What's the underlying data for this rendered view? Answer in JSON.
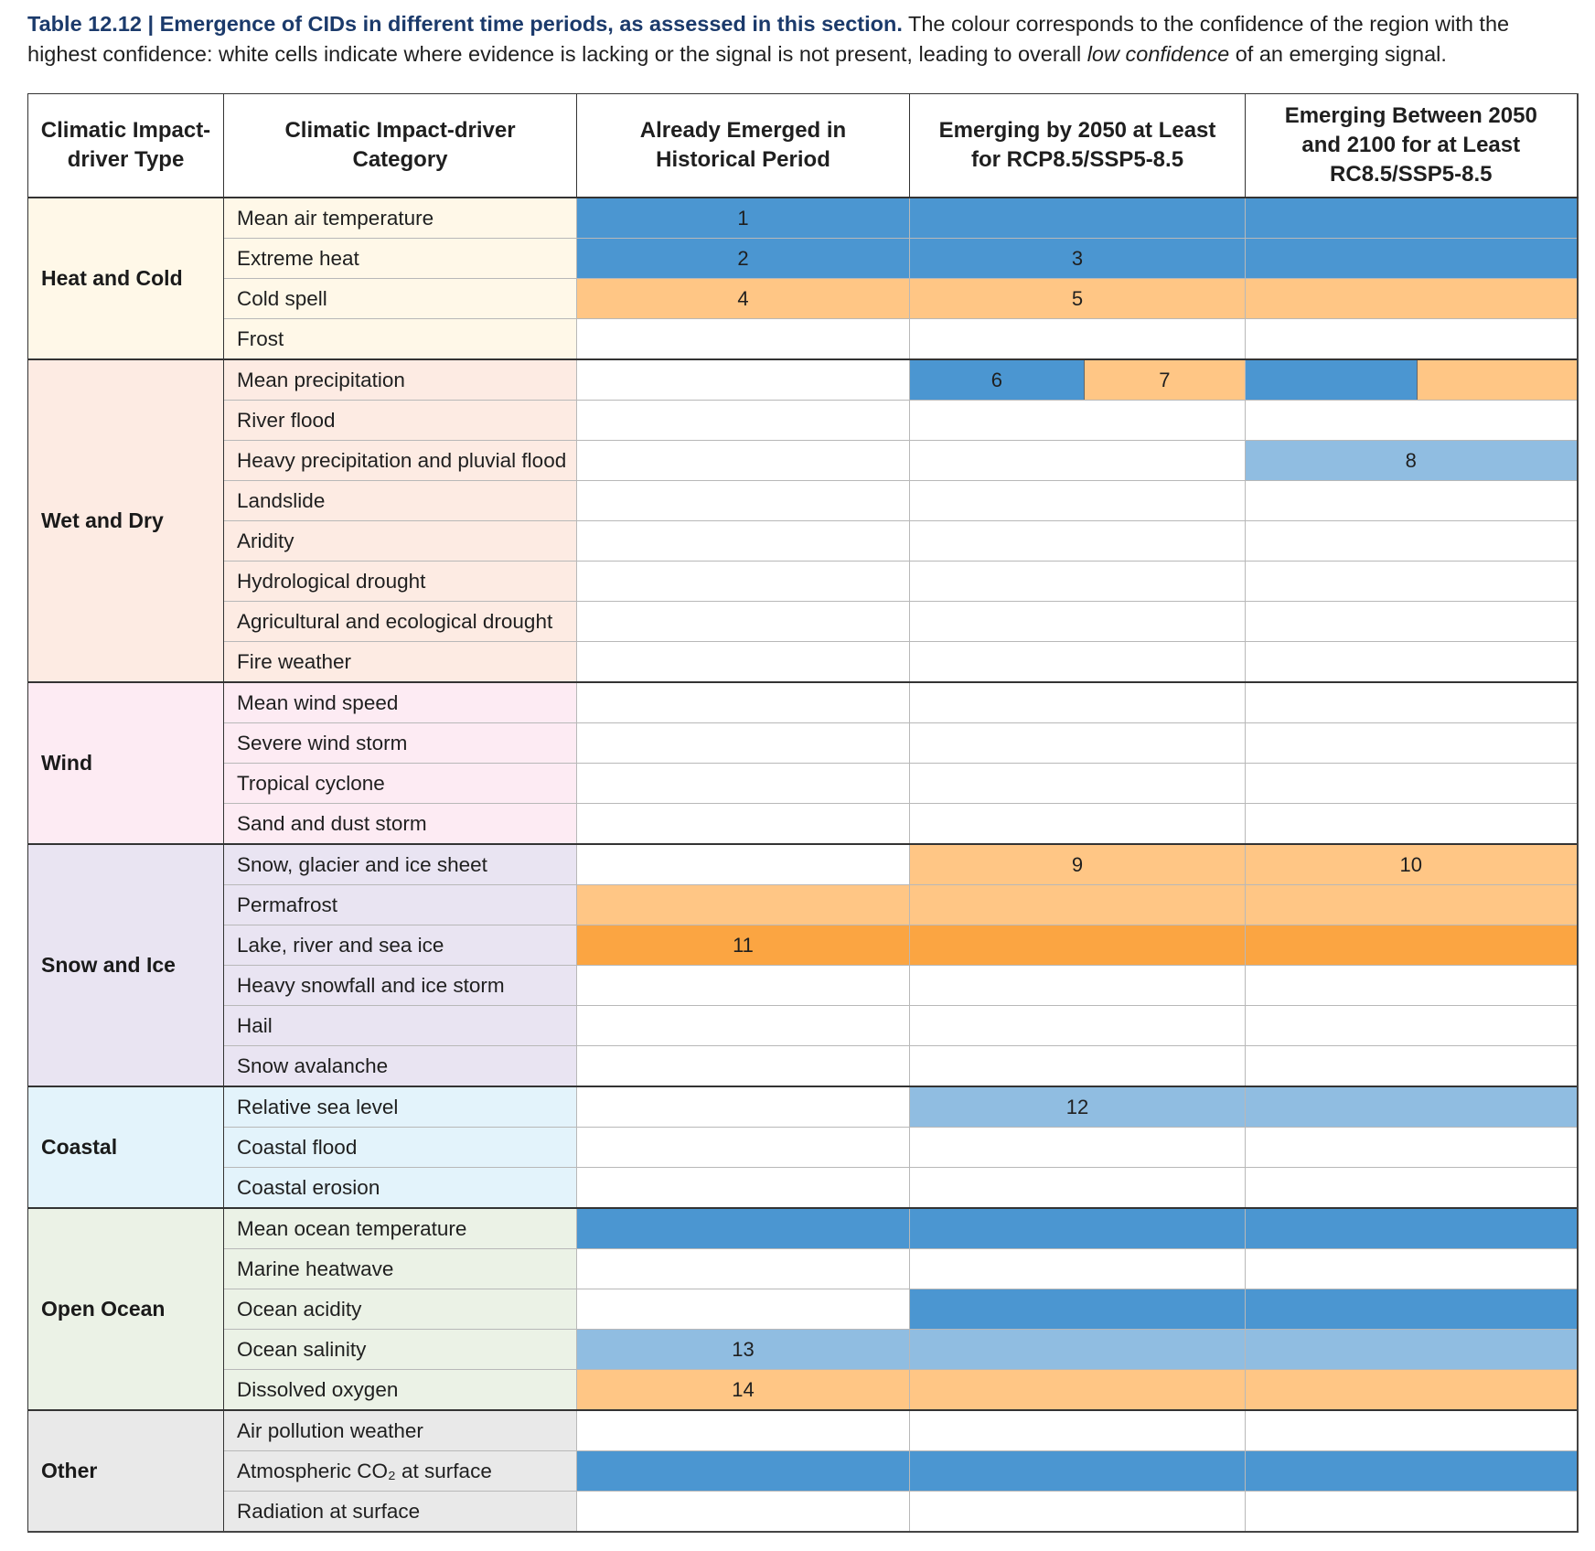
{
  "caption": {
    "title": "Table 12.12 | Emergence of CIDs in different time periods, as assessed in this section.",
    "text_before": " The colour corresponds to the confidence of the region with the highest confidence: white cells indicate where evidence is lacking or the signal is not present, leading to overall ",
    "emphasis": "low confidence",
    "text_after": " of an emerging signal."
  },
  "colors": {
    "blue": "#4b96d1",
    "light_blue": "#90bde1",
    "light_orange": "#ffc685",
    "orange": "#fba542",
    "white": "#ffffff"
  },
  "headers": {
    "type": "Climatic Impact-driver Type",
    "category": "Climatic Impact-driver Category",
    "historical": "Already Emerged in Historical Period",
    "by2050": "Emerging by 2050 at Least for RCP8.5/SSP5-8.5",
    "by2100": "Emerging Between 2050 and 2100 for at Least RC8.5/SSP5-8.5"
  },
  "groups": [
    {
      "type": "Heat and Cold",
      "bg": "#fff8e8",
      "rows": [
        {
          "category": "Mean air temperature",
          "cells": [
            {
              "color": "blue",
              "label": "1"
            },
            {
              "color": "blue",
              "label": ""
            },
            {
              "color": "blue",
              "label": ""
            }
          ]
        },
        {
          "category": "Extreme heat",
          "cells": [
            {
              "color": "blue",
              "label": "2"
            },
            {
              "color": "blue",
              "label": "3"
            },
            {
              "color": "blue",
              "label": ""
            }
          ]
        },
        {
          "category": "Cold spell",
          "cells": [
            {
              "color": "light_orange",
              "label": "4"
            },
            {
              "color": "light_orange",
              "label": "5"
            },
            {
              "color": "light_orange",
              "label": ""
            }
          ]
        },
        {
          "category": "Frost",
          "cells": [
            {
              "color": "white",
              "label": ""
            },
            {
              "color": "white",
              "label": ""
            },
            {
              "color": "white",
              "label": ""
            }
          ]
        }
      ]
    },
    {
      "type": "Wet and Dry",
      "bg": "#fdebe3",
      "rows": [
        {
          "category": "Mean precipitation",
          "cells": [
            {
              "color": "white",
              "label": ""
            },
            {
              "split": [
                {
                  "color": "blue",
                  "label": "6"
                },
                {
                  "color": "light_orange",
                  "label": "7"
                }
              ]
            },
            {
              "split": [
                {
                  "color": "blue",
                  "label": ""
                },
                {
                  "color": "light_orange",
                  "label": ""
                }
              ]
            }
          ]
        },
        {
          "category": "River flood",
          "cells": [
            {
              "color": "white",
              "label": ""
            },
            {
              "color": "white",
              "label": ""
            },
            {
              "color": "white",
              "label": ""
            }
          ]
        },
        {
          "category": "Heavy precipitation and pluvial flood",
          "cells": [
            {
              "color": "white",
              "label": ""
            },
            {
              "color": "white",
              "label": ""
            },
            {
              "color": "light_blue",
              "label": "8"
            }
          ]
        },
        {
          "category": "Landslide",
          "cells": [
            {
              "color": "white",
              "label": ""
            },
            {
              "color": "white",
              "label": ""
            },
            {
              "color": "white",
              "label": ""
            }
          ]
        },
        {
          "category": "Aridity",
          "cells": [
            {
              "color": "white",
              "label": ""
            },
            {
              "color": "white",
              "label": ""
            },
            {
              "color": "white",
              "label": ""
            }
          ]
        },
        {
          "category": "Hydrological drought",
          "cells": [
            {
              "color": "white",
              "label": ""
            },
            {
              "color": "white",
              "label": ""
            },
            {
              "color": "white",
              "label": ""
            }
          ]
        },
        {
          "category": "Agricultural and ecological drought",
          "cells": [
            {
              "color": "white",
              "label": ""
            },
            {
              "color": "white",
              "label": ""
            },
            {
              "color": "white",
              "label": ""
            }
          ]
        },
        {
          "category": "Fire weather",
          "cells": [
            {
              "color": "white",
              "label": ""
            },
            {
              "color": "white",
              "label": ""
            },
            {
              "color": "white",
              "label": ""
            }
          ]
        }
      ]
    },
    {
      "type": "Wind",
      "bg": "#fdebf3",
      "rows": [
        {
          "category": "Mean wind speed",
          "cells": [
            {
              "color": "white",
              "label": ""
            },
            {
              "color": "white",
              "label": ""
            },
            {
              "color": "white",
              "label": ""
            }
          ]
        },
        {
          "category": "Severe wind storm",
          "cells": [
            {
              "color": "white",
              "label": ""
            },
            {
              "color": "white",
              "label": ""
            },
            {
              "color": "white",
              "label": ""
            }
          ]
        },
        {
          "category": "Tropical cyclone",
          "cells": [
            {
              "color": "white",
              "label": ""
            },
            {
              "color": "white",
              "label": ""
            },
            {
              "color": "white",
              "label": ""
            }
          ]
        },
        {
          "category": "Sand and dust storm",
          "cells": [
            {
              "color": "white",
              "label": ""
            },
            {
              "color": "white",
              "label": ""
            },
            {
              "color": "white",
              "label": ""
            }
          ]
        }
      ]
    },
    {
      "type": "Snow and Ice",
      "bg": "#e9e4f2",
      "rows": [
        {
          "category": "Snow, glacier and ice sheet",
          "cells": [
            {
              "color": "white",
              "label": ""
            },
            {
              "color": "light_orange",
              "label": "9"
            },
            {
              "color": "light_orange",
              "label": "10"
            }
          ]
        },
        {
          "category": "Permafrost",
          "cells": [
            {
              "color": "light_orange",
              "label": ""
            },
            {
              "color": "light_orange",
              "label": ""
            },
            {
              "color": "light_orange",
              "label": ""
            }
          ]
        },
        {
          "category": "Lake, river and sea ice",
          "cells": [
            {
              "color": "orange",
              "label": "11"
            },
            {
              "color": "orange",
              "label": ""
            },
            {
              "color": "orange",
              "label": ""
            }
          ]
        },
        {
          "category": "Heavy snowfall and ice storm",
          "cells": [
            {
              "color": "white",
              "label": ""
            },
            {
              "color": "white",
              "label": ""
            },
            {
              "color": "white",
              "label": ""
            }
          ]
        },
        {
          "category": "Hail",
          "cells": [
            {
              "color": "white",
              "label": ""
            },
            {
              "color": "white",
              "label": ""
            },
            {
              "color": "white",
              "label": ""
            }
          ]
        },
        {
          "category": "Snow avalanche",
          "cells": [
            {
              "color": "white",
              "label": ""
            },
            {
              "color": "white",
              "label": ""
            },
            {
              "color": "white",
              "label": ""
            }
          ]
        }
      ]
    },
    {
      "type": "Coastal",
      "bg": "#e3f3fb",
      "rows": [
        {
          "category": "Relative sea level",
          "cells": [
            {
              "color": "white",
              "label": ""
            },
            {
              "color": "light_blue",
              "label": "12"
            },
            {
              "color": "light_blue",
              "label": ""
            }
          ]
        },
        {
          "category": "Coastal flood",
          "cells": [
            {
              "color": "white",
              "label": ""
            },
            {
              "color": "white",
              "label": ""
            },
            {
              "color": "white",
              "label": ""
            }
          ]
        },
        {
          "category": "Coastal erosion",
          "cells": [
            {
              "color": "white",
              "label": ""
            },
            {
              "color": "white",
              "label": ""
            },
            {
              "color": "white",
              "label": ""
            }
          ]
        }
      ]
    },
    {
      "type": "Open Ocean",
      "bg": "#ebf2e6",
      "rows": [
        {
          "category": "Mean ocean temperature",
          "cells": [
            {
              "color": "blue",
              "label": ""
            },
            {
              "color": "blue",
              "label": ""
            },
            {
              "color": "blue",
              "label": ""
            }
          ]
        },
        {
          "category": "Marine heatwave",
          "cells": [
            {
              "color": "white",
              "label": ""
            },
            {
              "color": "white",
              "label": ""
            },
            {
              "color": "white",
              "label": ""
            }
          ]
        },
        {
          "category": "Ocean acidity",
          "cells": [
            {
              "color": "white",
              "label": ""
            },
            {
              "color": "blue",
              "label": ""
            },
            {
              "color": "blue",
              "label": ""
            }
          ]
        },
        {
          "category": "Ocean salinity",
          "cells": [
            {
              "color": "light_blue",
              "label": "13"
            },
            {
              "color": "light_blue",
              "label": ""
            },
            {
              "color": "light_blue",
              "label": ""
            }
          ]
        },
        {
          "category": "Dissolved oxygen",
          "cells": [
            {
              "color": "light_orange",
              "label": "14"
            },
            {
              "color": "light_orange",
              "label": ""
            },
            {
              "color": "light_orange",
              "label": ""
            }
          ]
        }
      ]
    },
    {
      "type": "Other",
      "bg": "#e9e9e9",
      "rows": [
        {
          "category": "Air pollution weather",
          "cells": [
            {
              "color": "white",
              "label": ""
            },
            {
              "color": "white",
              "label": ""
            },
            {
              "color": "white",
              "label": ""
            }
          ]
        },
        {
          "category": "Atmospheric CO₂ at surface",
          "cells": [
            {
              "color": "blue",
              "label": ""
            },
            {
              "color": "blue",
              "label": ""
            },
            {
              "color": "blue",
              "label": ""
            }
          ]
        },
        {
          "category": "Radiation at surface",
          "cells": [
            {
              "color": "white",
              "label": ""
            },
            {
              "color": "white",
              "label": ""
            },
            {
              "color": "white",
              "label": ""
            }
          ]
        }
      ]
    }
  ]
}
